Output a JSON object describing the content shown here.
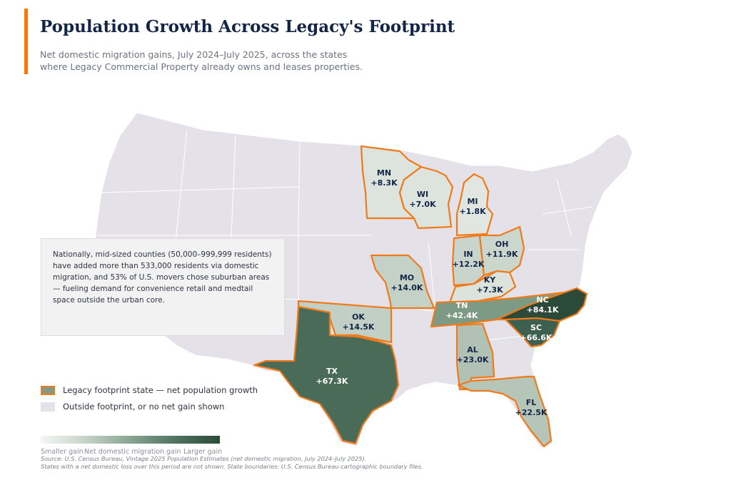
{
  "header": {
    "title": "Population Growth Across Legacy's Footprint",
    "subtitle": "Net domestic migration gains, July 2024–July 2025, across the states where Legacy Commercial Property already owns and leases properties."
  },
  "callout": {
    "text": "Nationally, mid-sized counties (50,000–999,999 residents) have added more than 533,000 residents via domestic migration, and 53% of U.S. movers chose suburban areas — fueling demand for convenience retail and medtail space outside the urban core."
  },
  "legend": {
    "footprint_label": "Legacy footprint state — net population growth",
    "outside_label": "Outside footprint, or no net gain shown"
  },
  "scale": {
    "low_label": "Smaller gain",
    "mid_label": "Net domestic migration gain",
    "high_label": "Larger gain"
  },
  "source": {
    "line1": "Source: U.S. Census Bureau, Vintage 2025 Population Estimates (net domestic migration, July 2024–July 2025).",
    "line2": "States with a net domestic loss over this period are not shown. State boundaries: U.S. Census Bureau cartographic boundary files."
  },
  "colors": {
    "accent": "#f07a1a",
    "base_state": "#e4e2e8",
    "title": "#132547"
  },
  "states": [
    {
      "code": "MN",
      "value": "+8.3K"
    },
    {
      "code": "WI",
      "value": "+7.0K"
    },
    {
      "code": "MI",
      "value": "+1.8K"
    },
    {
      "code": "IN",
      "value": "+12.2K"
    },
    {
      "code": "OH",
      "value": "+11.9K"
    },
    {
      "code": "MO",
      "value": "+14.0K"
    },
    {
      "code": "KY",
      "value": "+7.3K"
    },
    {
      "code": "OK",
      "value": "+14.5K"
    },
    {
      "code": "TN",
      "value": "+42.4K"
    },
    {
      "code": "NC",
      "value": "+84.1K"
    },
    {
      "code": "SC",
      "value": "+66.6K"
    },
    {
      "code": "AL",
      "value": "+23.0K"
    },
    {
      "code": "TX",
      "value": "+67.3K"
    },
    {
      "code": "FL",
      "value": "+22.5K"
    }
  ]
}
